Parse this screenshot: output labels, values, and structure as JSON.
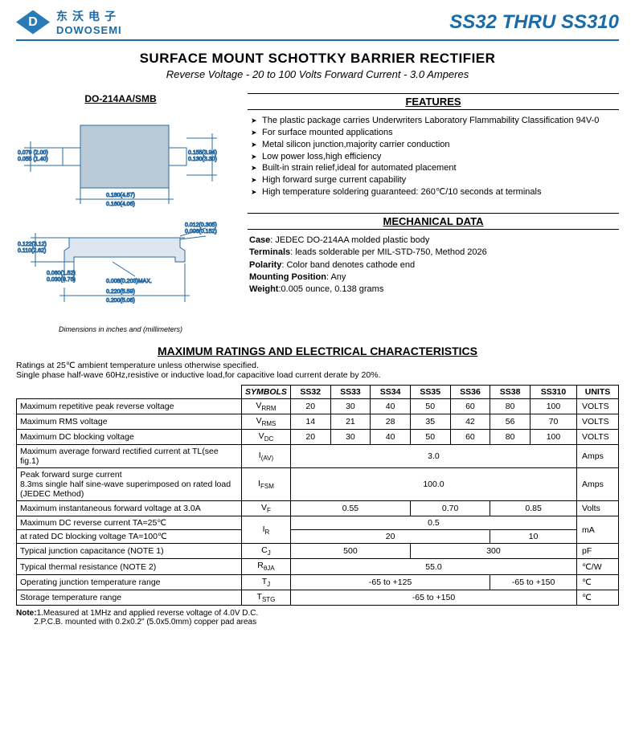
{
  "header": {
    "logo_letter": "D",
    "company_cn": "东沃电子",
    "company_en": "DOWOSEMI",
    "part_range": "SS32 THRU SS310"
  },
  "title": {
    "main": "SURFACE MOUNT SCHOTTKY BARRIER RECTIFIER",
    "sub": "Reverse Voltage - 20 to 100 Volts    Forward Current - 3.0 Amperes"
  },
  "package": {
    "name": "DO-214AA/SMB",
    "dim_note": "Dimensions in inches and (millimeters)",
    "dims": {
      "a": "0.079 (2.00)\n0.055 (1.40)",
      "b": "0.155(3.94)\n0.130(3.30)",
      "c": "0.180(4.57)\n0.160(4.06)",
      "d": "0.012(0.305)\n0.006(0.152)",
      "e": "0.122(3.12)\n0.110(2.62)",
      "f": "0.060(1.52)\n0.030(0.76)",
      "g": "0.008(0.203)MAX.",
      "h": "0.220(5.59)\n0.200(5.08)"
    }
  },
  "features": {
    "header": "FEATURES",
    "items": [
      "The plastic package carries Underwriters Laboratory Flammability Classification 94V-0",
      "For surface mounted applications",
      "Metal silicon junction,majority carrier conduction",
      "Low power loss,high efficiency",
      "Built-in strain relief,ideal for automated placement",
      "High forward surge current capability",
      "High temperature soldering guaranteed: 260℃/10 seconds at terminals"
    ]
  },
  "mechanical": {
    "header": "MECHANICAL DATA",
    "case_label": "Case",
    "case": ": JEDEC DO-214AA molded plastic body",
    "terminals_label": "Terminals",
    "terminals": ": leads solderable per MIL-STD-750, Method 2026",
    "polarity_label": "Polarity",
    "polarity": ": Color band denotes cathode end",
    "mounting_label": "Mounting Position",
    "mounting": ": Any",
    "weight_label": "Weight",
    "weight": ":0.005 ounce, 0.138 grams"
  },
  "ratings": {
    "title": "MAXIMUM RATINGS AND ELECTRICAL CHARACTERISTICS",
    "note": "Ratings at 25℃ ambient temperature unless otherwise specified.\nSingle phase half-wave 60Hz,resistive or inductive load,for capacitive load current derate by 20%.",
    "col_symbols": "SYMBOLS",
    "col_units": "UNITS",
    "parts": [
      "SS32",
      "SS33",
      "SS34",
      "SS35",
      "SS36",
      "SS38",
      "SS310"
    ],
    "rows": [
      {
        "param": "Maximum repetitive peak reverse voltage",
        "sym": "VRRM",
        "vals": [
          "20",
          "30",
          "40",
          "50",
          "60",
          "80",
          "100"
        ],
        "unit": "VOLTS"
      },
      {
        "param": "Maximum RMS voltage",
        "sym": "VRMS",
        "vals": [
          "14",
          "21",
          "28",
          "35",
          "42",
          "56",
          "70"
        ],
        "unit": "VOLTS"
      },
      {
        "param": "Maximum DC blocking voltage",
        "sym": "VDC",
        "vals": [
          "20",
          "30",
          "40",
          "50",
          "60",
          "80",
          "100"
        ],
        "unit": "VOLTS"
      },
      {
        "param": "Maximum average forward rectified current at TL(see fig.1)",
        "sym": "I(AV)",
        "merged": [
          {
            "span": 7,
            "val": "3.0"
          }
        ],
        "unit": "Amps"
      },
      {
        "param": "Peak forward surge current\n8.3ms single half sine-wave superimposed on rated load (JEDEC Method)",
        "sym": "IFSM",
        "merged": [
          {
            "span": 7,
            "val": "100.0"
          }
        ],
        "unit": "Amps"
      },
      {
        "param": "Maximum instantaneous forward voltage at 3.0A",
        "sym": "VF",
        "merged": [
          {
            "span": 3,
            "val": "0.55"
          },
          {
            "span": 2,
            "val": "0.70"
          },
          {
            "span": 2,
            "val": "0.85"
          }
        ],
        "unit": "Volts"
      },
      {
        "param": "Maximum DC reverse current    TA=25℃",
        "sym": "IR",
        "rowspan": 2,
        "merged": [
          {
            "span": 7,
            "val": "0.5"
          }
        ],
        "unit": "mA",
        "unit_rowspan": 2
      },
      {
        "param": "at rated DC blocking voltage    TA=100℃",
        "merged": [
          {
            "span": 5,
            "val": "20"
          },
          {
            "span": 2,
            "val": "10"
          }
        ]
      },
      {
        "param": "Typical junction capacitance (NOTE 1)",
        "sym": "CJ",
        "merged": [
          {
            "span": 3,
            "val": "500"
          },
          {
            "span": 4,
            "val": "300"
          }
        ],
        "unit": "pF"
      },
      {
        "param": "Typical thermal resistance (NOTE 2)",
        "sym": "RθJA",
        "merged": [
          {
            "span": 7,
            "val": "55.0"
          }
        ],
        "unit": "℃/W"
      },
      {
        "param": "Operating junction temperature range",
        "sym": "TJ",
        "merged": [
          {
            "span": 5,
            "val": "-65 to +125"
          },
          {
            "span": 2,
            "val": "-65 to +150"
          }
        ],
        "unit": "℃"
      },
      {
        "param": "Storage temperature range",
        "sym": "TSTG",
        "merged": [
          {
            "span": 7,
            "val": "-65 to +150"
          }
        ],
        "unit": "℃"
      }
    ]
  },
  "footnote": {
    "label": "Note:",
    "n1": "1.Measured at 1MHz and applied reverse voltage of 4.0V D.C.",
    "n2": "2.P.C.B. mounted with 0.2x0.2\" (5.0x5.0mm) copper pad areas"
  },
  "colors": {
    "brand": "#1a6ba8"
  }
}
